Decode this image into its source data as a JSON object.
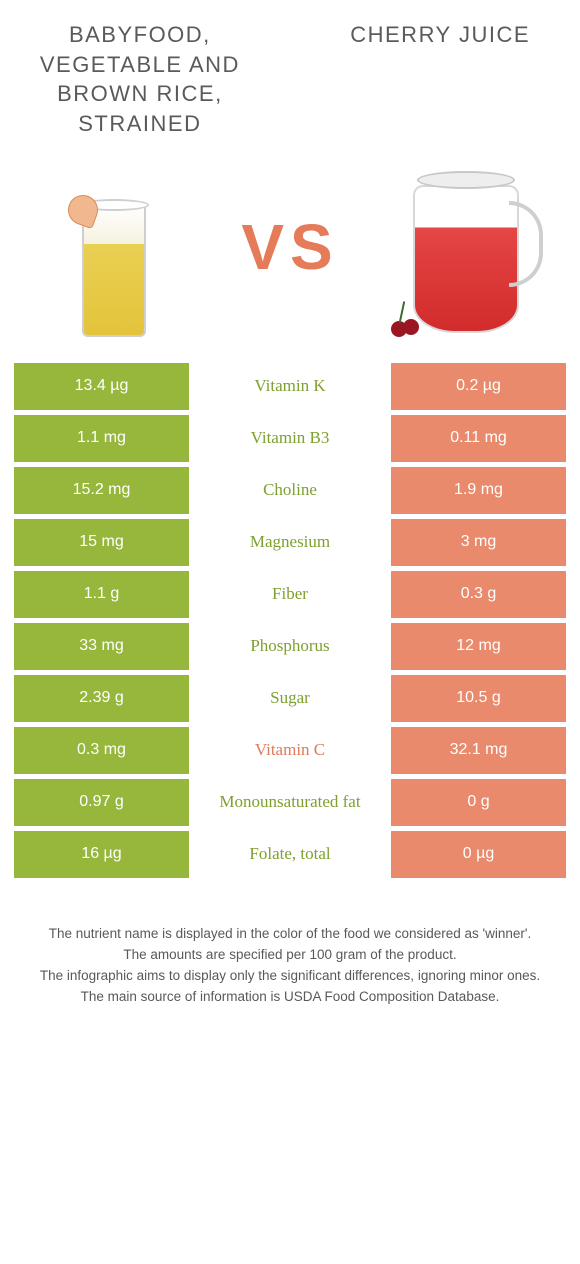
{
  "colors": {
    "left_bg": "#97b73c",
    "right_bg": "#e88a6b",
    "winner_left_text": "#7ea02f",
    "winner_right_text": "#df7a5b"
  },
  "titles": {
    "left": "Babyfood, vegetable and brown rice, strained",
    "right": "Cherry juice",
    "vs": "VS"
  },
  "table": {
    "rows": [
      {
        "left": "13.4 µg",
        "label": "Vitamin K",
        "right": "0.2 µg",
        "winner": "left"
      },
      {
        "left": "1.1 mg",
        "label": "Vitamin B3",
        "right": "0.11 mg",
        "winner": "left"
      },
      {
        "left": "15.2 mg",
        "label": "Choline",
        "right": "1.9 mg",
        "winner": "left"
      },
      {
        "left": "15 mg",
        "label": "Magnesium",
        "right": "3 mg",
        "winner": "left"
      },
      {
        "left": "1.1 g",
        "label": "Fiber",
        "right": "0.3 g",
        "winner": "left"
      },
      {
        "left": "33 mg",
        "label": "Phosphorus",
        "right": "12 mg",
        "winner": "left"
      },
      {
        "left": "2.39 g",
        "label": "Sugar",
        "right": "10.5 g",
        "winner": "left"
      },
      {
        "left": "0.3 mg",
        "label": "Vitamin C",
        "right": "32.1 mg",
        "winner": "right"
      },
      {
        "left": "0.97 g",
        "label": "Monounsaturated fat",
        "right": "0 g",
        "winner": "left"
      },
      {
        "left": "16 µg",
        "label": "Folate, total",
        "right": "0 µg",
        "winner": "left"
      }
    ]
  },
  "footer": {
    "line1": "The nutrient name is displayed in the color of the food we considered as 'winner'.",
    "line2": "The amounts are specified per 100 gram of the product.",
    "line3": "The infographic aims to display only the significant differences, ignoring minor ones.",
    "line4": "The main source of information is USDA Food Composition Database."
  }
}
